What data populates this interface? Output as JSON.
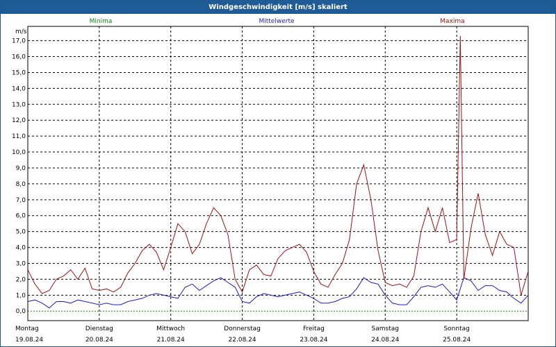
{
  "window": {
    "title": "Windgeschwindigkeit [m/s] skaliert"
  },
  "colors": {
    "min": "#0a8a0a",
    "mean": "#1a1ad0",
    "max": "#a01010",
    "titlebar": "#1f5c97"
  },
  "chart_data": {
    "type": "line",
    "title": "Windgeschwindigkeit [m/s] skaliert",
    "ylabel": "m/s",
    "ylim": [
      -0.6,
      17.9
    ],
    "xlim": [
      0,
      7
    ],
    "yticks": [
      "0,0",
      "1,0",
      "2,0",
      "3,0",
      "4,0",
      "5,0",
      "6,0",
      "7,0",
      "8,0",
      "9,0",
      "10,0",
      "11,0",
      "12,0",
      "13,0",
      "14,0",
      "15,0",
      "16,0",
      "17,0"
    ],
    "days": [
      {
        "name": "Montag",
        "date": "19.08.24"
      },
      {
        "name": "Dienstag",
        "date": "20.08.24"
      },
      {
        "name": "Mittwoch",
        "date": "21.08.24"
      },
      {
        "name": "Donnerstag",
        "date": "22.08.24"
      },
      {
        "name": "Freitag",
        "date": "23.08.24"
      },
      {
        "name": "Samstag",
        "date": "24.08.24"
      },
      {
        "name": "Sonntag",
        "date": "25.08.24"
      }
    ],
    "legend": [
      "Minima",
      "Mittelwerte",
      "Maxima"
    ],
    "series": [
      {
        "name": "Minima",
        "x": [
          0,
          7
        ],
        "values": [
          0.0,
          0.0
        ]
      },
      {
        "name": "Mittelwerte",
        "x": [
          0,
          0.1,
          0.2,
          0.3,
          0.4,
          0.5,
          0.6,
          0.7,
          0.8,
          0.9,
          1.0,
          1.1,
          1.2,
          1.3,
          1.4,
          1.5,
          1.6,
          1.7,
          1.8,
          1.9,
          2.0,
          2.1,
          2.2,
          2.3,
          2.4,
          2.5,
          2.6,
          2.7,
          2.8,
          2.9,
          3.0,
          3.1,
          3.2,
          3.3,
          3.4,
          3.5,
          3.6,
          3.7,
          3.8,
          3.9,
          4.0,
          4.1,
          4.2,
          4.3,
          4.4,
          4.5,
          4.6,
          4.7,
          4.8,
          4.9,
          5.0,
          5.1,
          5.2,
          5.3,
          5.4,
          5.5,
          5.6,
          5.7,
          5.8,
          5.9,
          6.0,
          6.1,
          6.2,
          6.3,
          6.4,
          6.5,
          6.6,
          6.7,
          6.8,
          6.9,
          7.0
        ],
        "values": [
          0.6,
          0.7,
          0.5,
          0.2,
          0.6,
          0.6,
          0.5,
          0.7,
          0.6,
          0.5,
          0.4,
          0.5,
          0.4,
          0.4,
          0.6,
          0.7,
          0.8,
          1.0,
          1.1,
          1.0,
          0.9,
          0.8,
          1.5,
          1.7,
          1.3,
          1.6,
          1.9,
          2.1,
          1.8,
          1.5,
          0.6,
          0.5,
          0.9,
          1.1,
          1.0,
          0.9,
          1.0,
          1.1,
          1.2,
          1.0,
          0.8,
          0.5,
          0.5,
          0.6,
          0.8,
          0.9,
          1.4,
          2.1,
          1.8,
          1.7,
          1.0,
          0.5,
          0.4,
          0.4,
          0.9,
          1.5,
          1.6,
          1.5,
          1.7,
          1.2,
          0.7,
          2.1,
          1.9,
          1.3,
          1.6,
          1.6,
          1.3,
          1.2,
          0.8,
          0.5,
          1.0
        ]
      },
      {
        "name": "Maxima",
        "x": [
          0,
          0.1,
          0.2,
          0.3,
          0.4,
          0.5,
          0.6,
          0.7,
          0.8,
          0.9,
          1.0,
          1.1,
          1.2,
          1.3,
          1.4,
          1.5,
          1.6,
          1.7,
          1.8,
          1.9,
          2.0,
          2.1,
          2.2,
          2.3,
          2.4,
          2.5,
          2.6,
          2.7,
          2.8,
          2.9,
          3.0,
          3.1,
          3.2,
          3.3,
          3.4,
          3.5,
          3.6,
          3.7,
          3.8,
          3.9,
          4.0,
          4.1,
          4.2,
          4.3,
          4.4,
          4.5,
          4.6,
          4.7,
          4.8,
          4.9,
          5.0,
          5.1,
          5.2,
          5.3,
          5.4,
          5.5,
          5.6,
          5.7,
          5.8,
          5.9,
          6.0,
          6.05,
          6.1,
          6.2,
          6.3,
          6.4,
          6.5,
          6.6,
          6.7,
          6.8,
          6.9,
          7.0
        ],
        "values": [
          2.6,
          1.7,
          1.1,
          1.3,
          2.0,
          2.2,
          2.6,
          2.0,
          2.7,
          1.4,
          1.3,
          1.4,
          1.2,
          1.5,
          2.4,
          3.0,
          3.8,
          4.2,
          3.7,
          2.6,
          4.0,
          5.5,
          5.0,
          3.6,
          4.2,
          5.5,
          6.5,
          6.0,
          4.8,
          2.0,
          1.2,
          2.6,
          2.9,
          2.3,
          2.2,
          3.3,
          3.8,
          4.0,
          4.2,
          3.7,
          2.5,
          1.7,
          1.5,
          2.3,
          3.0,
          4.5,
          8.0,
          9.2,
          7.0,
          3.8,
          1.8,
          1.6,
          1.7,
          1.5,
          2.2,
          5.0,
          6.5,
          5.0,
          6.5,
          4.3,
          4.5,
          17.3,
          2.0,
          5.2,
          7.4,
          4.8,
          3.5,
          5.0,
          4.2,
          4.0,
          1.0,
          2.5
        ]
      }
    ]
  }
}
